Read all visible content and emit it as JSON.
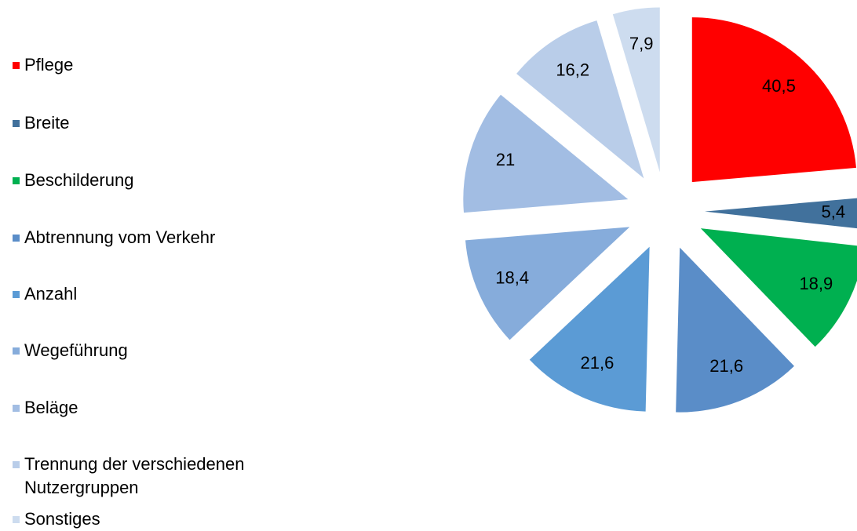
{
  "chart_data": {
    "type": "pie",
    "categories": [
      "Pflege",
      "Breite",
      "Beschilderung",
      "Abtrennung vom Verkehr",
      "Anzahl",
      "Wegeführung",
      "Beläge",
      "Trennung der verschiedenen Nutzergruppen",
      "Sonstiges"
    ],
    "values": [
      40.5,
      5.4,
      18.9,
      21.6,
      21.6,
      18.4,
      21,
      16.2,
      7.9
    ],
    "value_labels": [
      "40,5",
      "5,4",
      "18,9",
      "21,6",
      "21,6",
      "18,4",
      "21",
      "16,2",
      "7,9"
    ],
    "colors": [
      "#ff0000",
      "#41719c",
      "#00b050",
      "#5a8dc8",
      "#5b9bd5",
      "#86acdb",
      "#a2bde3",
      "#b9cde9",
      "#cddcef"
    ],
    "legend": "left"
  }
}
